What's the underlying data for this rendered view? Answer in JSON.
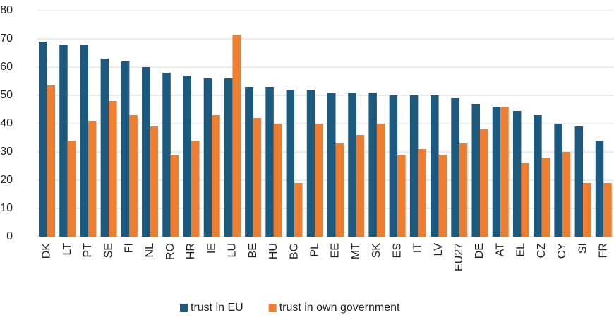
{
  "chart_data": {
    "type": "bar",
    "categories": [
      "DK",
      "LT",
      "PT",
      "SE",
      "FI",
      "NL",
      "RO",
      "HR",
      "IE",
      "LU",
      "BE",
      "HU",
      "BG",
      "PL",
      "EE",
      "MT",
      "SK",
      "ES",
      "IT",
      "LV",
      "EU27",
      "DE",
      "AT",
      "EL",
      "CZ",
      "CY",
      "SI",
      "FR"
    ],
    "series": [
      {
        "name": "trust in EU",
        "color": "#1b5a7e",
        "values": [
          69,
          68,
          68,
          63,
          62,
          60,
          58,
          57,
          56,
          56,
          53,
          53,
          52,
          52,
          51,
          51,
          51,
          50,
          50,
          50,
          49,
          47,
          46,
          44.5,
          43,
          40,
          39,
          34
        ]
      },
      {
        "name": "trust in own government",
        "color": "#ed7d31",
        "values": [
          53.5,
          34,
          41,
          48,
          43,
          39,
          29,
          34,
          43,
          71.5,
          42,
          40,
          19,
          40,
          33,
          36,
          40,
          29,
          31,
          29,
          33,
          38,
          46,
          26,
          28,
          30,
          19,
          19
        ]
      }
    ],
    "ylim": [
      0,
      80
    ],
    "yticks": [
      0,
      10,
      20,
      30,
      40,
      50,
      60,
      70,
      80
    ],
    "grid": true
  }
}
